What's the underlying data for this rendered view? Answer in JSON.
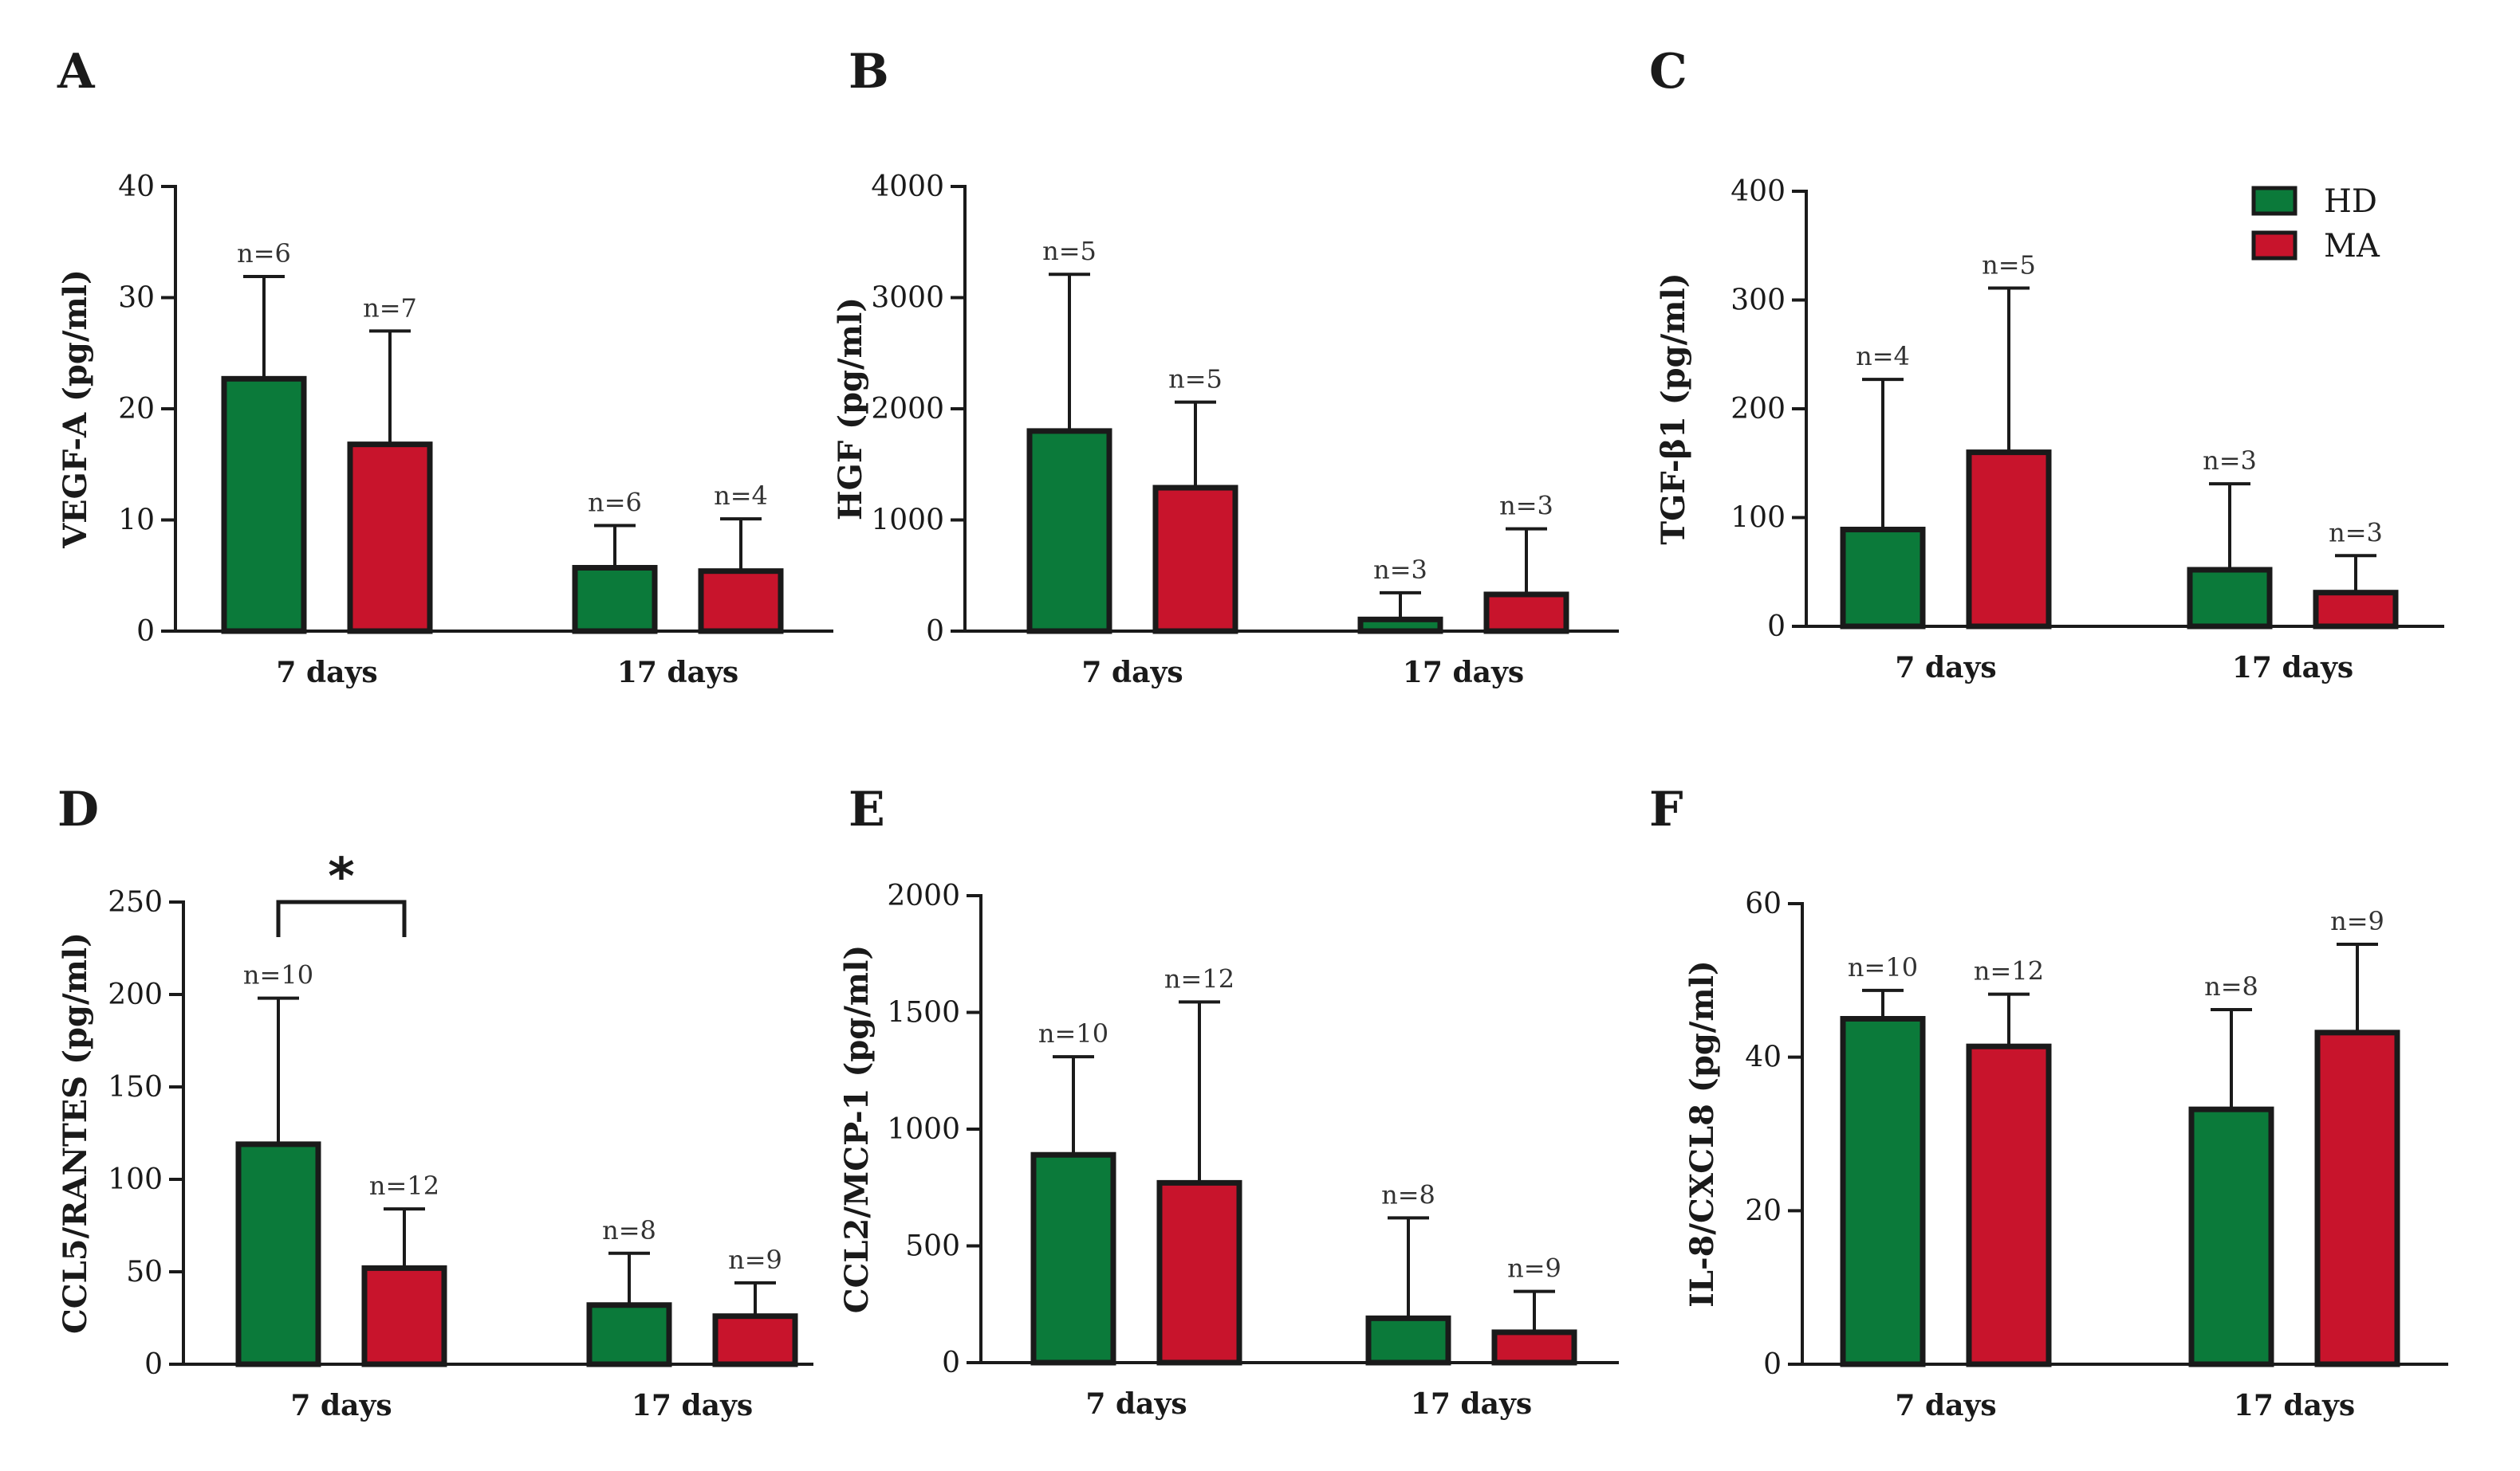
{
  "colors": {
    "HD": "#0b7a3a",
    "MA": "#c8142c",
    "axis": "#1a1a1a"
  },
  "legend": {
    "items": [
      {
        "key": "HD",
        "label": "HD"
      },
      {
        "key": "MA",
        "label": "MA"
      }
    ]
  },
  "chart_data": [
    {
      "panel": "A",
      "type": "bar",
      "ylabel": "VEGF-A (pg/ml)",
      "ylim": [
        0,
        40
      ],
      "yticks": [
        0,
        10,
        20,
        30,
        40
      ],
      "ytick_labels": [
        "0",
        "10",
        "20",
        "30",
        "40"
      ],
      "categories": [
        "7 days",
        "17 days"
      ],
      "series": [
        {
          "name": "HD",
          "values": [
            22.7,
            5.7
          ],
          "error_upper": [
            31.9,
            9.5
          ],
          "n_labels": [
            "n=6",
            "n=6"
          ]
        },
        {
          "name": "MA",
          "values": [
            16.8,
            5.4
          ],
          "error_upper": [
            27.0,
            10.1
          ],
          "n_labels": [
            "n=7",
            "n=4"
          ]
        }
      ]
    },
    {
      "panel": "B",
      "type": "bar",
      "ylabel": "HGF (pg/ml)",
      "ylim": [
        0,
        4000
      ],
      "yticks": [
        0,
        1000,
        2000,
        3000,
        4000
      ],
      "ytick_labels": [
        "0",
        "1000",
        "2000",
        "3000",
        "4000"
      ],
      "categories": [
        "7 days",
        "17 days"
      ],
      "series": [
        {
          "name": "HD",
          "values": [
            1800,
            105
          ],
          "error_upper": [
            3210,
            345
          ],
          "n_labels": [
            "n=5",
            "n=3"
          ]
        },
        {
          "name": "MA",
          "values": [
            1290,
            330
          ],
          "error_upper": [
            2060,
            920
          ],
          "n_labels": [
            "n=5",
            "n=3"
          ]
        }
      ]
    },
    {
      "panel": "C",
      "type": "bar",
      "ylabel": "TGF-β1 (pg/ml)",
      "ylim": [
        0,
        400
      ],
      "yticks": [
        0,
        100,
        200,
        300,
        400
      ],
      "ytick_labels": [
        "0",
        "100",
        "200",
        "300",
        "400"
      ],
      "categories": [
        "7 days",
        "17 days"
      ],
      "series": [
        {
          "name": "HD",
          "values": [
            89,
            52
          ],
          "error_upper": [
            227,
            131
          ],
          "n_labels": [
            "n=4",
            "n=3"
          ]
        },
        {
          "name": "MA",
          "values": [
            160,
            31
          ],
          "error_upper": [
            311,
            65
          ],
          "n_labels": [
            "n=5",
            "n=3"
          ]
        }
      ],
      "legend": "top-right"
    },
    {
      "panel": "D",
      "type": "bar",
      "ylabel": "CCL5/RANTES (pg/ml)",
      "ylim": [
        0,
        250
      ],
      "yticks": [
        0,
        50,
        100,
        150,
        200,
        250
      ],
      "ytick_labels": [
        "0",
        "50",
        "100",
        "150",
        "200",
        "250"
      ],
      "categories": [
        "7 days",
        "17 days"
      ],
      "series": [
        {
          "name": "HD",
          "values": [
            119,
            32
          ],
          "error_upper": [
            198,
            60
          ],
          "n_labels": [
            "n=10",
            "n=8"
          ]
        },
        {
          "name": "MA",
          "values": [
            52,
            26
          ],
          "error_upper": [
            84,
            44
          ],
          "n_labels": [
            "n=12",
            "n=9"
          ]
        }
      ],
      "significance": {
        "label": "*",
        "between": [
          "HD",
          "MA"
        ],
        "category": "7 days",
        "y": 250
      }
    },
    {
      "panel": "E",
      "type": "bar",
      "ylabel": "CCL2/MCP-1 (pg/ml)",
      "ylim": [
        0,
        2000
      ],
      "yticks": [
        0,
        500,
        1000,
        1500,
        2000
      ],
      "ytick_labels": [
        "0",
        "500",
        "1000",
        "1500",
        "2000"
      ],
      "categories": [
        "7 days",
        "17 days"
      ],
      "series": [
        {
          "name": "HD",
          "values": [
            890,
            190
          ],
          "error_upper": [
            1310,
            620
          ],
          "n_labels": [
            "n=10",
            "n=8"
          ]
        },
        {
          "name": "MA",
          "values": [
            770,
            130
          ],
          "error_upper": [
            1545,
            305
          ],
          "n_labels": [
            "n=12",
            "n=9"
          ]
        }
      ]
    },
    {
      "panel": "F",
      "type": "bar",
      "ylabel": "IL-8/CXCL8 (pg/ml)",
      "ylim": [
        0,
        60
      ],
      "yticks": [
        0,
        20,
        40,
        60
      ],
      "ytick_labels": [
        "0",
        "20",
        "40",
        "60"
      ],
      "categories": [
        "7 days",
        "17 days"
      ],
      "series": [
        {
          "name": "HD",
          "values": [
            45,
            33.2
          ],
          "error_upper": [
            48.7,
            46.2
          ],
          "n_labels": [
            "n=10",
            "n=8"
          ]
        },
        {
          "name": "MA",
          "values": [
            41.4,
            43.2
          ],
          "error_upper": [
            48.2,
            54.7
          ],
          "n_labels": [
            "n=12",
            "n=9"
          ]
        }
      ]
    }
  ]
}
